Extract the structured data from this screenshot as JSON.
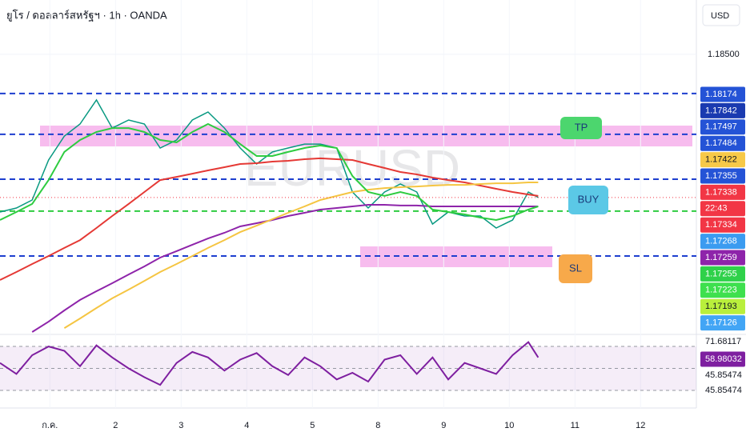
{
  "chart_data": {
    "type": "line",
    "title": "ยูโร / ดอลลาร์สหรัฐฯ · 1h · OANDA",
    "watermark": "EURUSD",
    "currency": "USD",
    "x": [
      0.24,
      0.49,
      0.73,
      0.98,
      1.22,
      1.46,
      1.71,
      1.95,
      2.2,
      2.44,
      2.68,
      2.93,
      3.17,
      3.41,
      3.66,
      3.9,
      4.15,
      4.39,
      4.63,
      4.88,
      5.12,
      5.37,
      5.61,
      5.85,
      6.1,
      6.34,
      6.59,
      6.83,
      7.07,
      7.32,
      7.56,
      7.8,
      8.05,
      8.29,
      8.44
    ],
    "xlim": [
      0.24,
      10.85
    ],
    "xticks": [
      {
        "value": 1,
        "label": "ก.ค."
      },
      2,
      3,
      4,
      5,
      {
        "value": 6,
        "label": "8"
      },
      {
        "value": 7,
        "label": "9"
      },
      {
        "value": 8,
        "label": "10"
      },
      {
        "value": 9,
        "label": "11"
      },
      {
        "value": 10,
        "label": "12"
      }
    ],
    "ylim": [
      1.16247,
      1.18941
    ],
    "yticks": [
      {
        "value": 1.185,
        "label": "1.18500"
      }
    ],
    "series": [
      {
        "color": "#089981",
        "values": [
          1.17221,
          1.17253,
          1.17318,
          1.17643,
          1.17837,
          1.17935,
          1.1813,
          1.17902,
          1.17967,
          1.17935,
          1.1774,
          1.17805,
          1.17967,
          1.18032,
          1.17902,
          1.1774,
          1.1761,
          1.17708,
          1.1774,
          1.17772,
          1.17772,
          1.1774,
          1.17383,
          1.17253,
          1.17383,
          1.17448,
          1.17383,
          1.17123,
          1.17221,
          1.17188,
          1.17188,
          1.17091,
          1.17156,
          1.17383,
          1.17338
        ]
      },
      {
        "color": "#e53935",
        "values": [
          1.16669,
          1.16734,
          1.16799,
          1.16864,
          1.16929,
          1.16993,
          1.17091,
          1.17188,
          1.17286,
          1.17383,
          1.1748,
          1.17506,
          1.17532,
          1.17558,
          1.17584,
          1.1761,
          1.17617,
          1.1763,
          1.17636,
          1.17649,
          1.17656,
          1.17649,
          1.17643,
          1.1761,
          1.17578,
          1.17545,
          1.17526,
          1.175,
          1.1748,
          1.17461,
          1.17435,
          1.17409,
          1.17383,
          1.17363,
          1.17351
        ]
      },
      {
        "color": "#8e24aa",
        "values": [
          null,
          null,
          1.16247,
          1.16331,
          1.16422,
          1.16507,
          1.16578,
          1.16643,
          1.16714,
          1.16779,
          1.16851,
          1.16903,
          1.16955,
          1.17006,
          1.17052,
          1.17104,
          1.1713,
          1.17156,
          1.17188,
          1.17214,
          1.1724,
          1.17253,
          1.17266,
          1.17279,
          1.17279,
          1.17273,
          1.17273,
          1.17266,
          1.17266,
          1.17266,
          1.17266,
          1.17266,
          1.17266,
          1.17266,
          1.17266
        ]
      },
      {
        "color": "#f5c542",
        "values": [
          null,
          null,
          null,
          null,
          1.16279,
          1.16357,
          1.16442,
          1.1652,
          1.16591,
          1.16662,
          1.16734,
          1.16799,
          1.16864,
          1.16929,
          1.16993,
          1.17058,
          1.1711,
          1.17162,
          1.17214,
          1.17266,
          1.17318,
          1.17351,
          1.17383,
          1.17402,
          1.17415,
          1.17422,
          1.17428,
          1.17435,
          1.17441,
          1.17441,
          1.17448,
          1.17454,
          1.17454,
          1.17461,
          1.17461
        ]
      },
      {
        "color": "#2ecc40",
        "values": [
          1.17156,
          1.17221,
          1.17286,
          1.1748,
          1.17708,
          1.17805,
          1.1787,
          1.17902,
          1.17902,
          1.1787,
          1.17805,
          1.17786,
          1.1787,
          1.17935,
          1.1787,
          1.17772,
          1.17675,
          1.17675,
          1.17708,
          1.1774,
          1.1776,
          1.1774,
          1.17513,
          1.17383,
          1.17351,
          1.17383,
          1.17351,
          1.1724,
          1.17221,
          1.17201,
          1.17175,
          1.17156,
          1.17188,
          1.1724,
          1.17266
        ]
      }
    ],
    "levels": [
      {
        "value": 1.18182,
        "color": "#1e3fcf"
      },
      {
        "value": 1.17851,
        "color": "#1e3fcf"
      },
      {
        "value": 1.17487,
        "color": "#1e3fcf"
      },
      {
        "value": 1.17228,
        "color": "#2ecc40"
      },
      {
        "value": 1.16864,
        "color": "#1e3fcf"
      }
    ],
    "price_tags": [
      {
        "value": 1.18174,
        "color": "#2453d6"
      },
      {
        "value": 1.17842,
        "color": "#1a3ab0"
      },
      {
        "value": 1.17497,
        "color": "#2453d6"
      },
      {
        "value": 1.17484,
        "color": "#2453d6"
      },
      {
        "value": 1.17422,
        "color": "#f7c948"
      },
      {
        "value": 1.17355,
        "color": "#2453d6"
      },
      {
        "value": 1.17338,
        "color": "#f23645"
      },
      {
        "text": "22:43",
        "color": "#f23645"
      },
      {
        "value": 1.17334,
        "color": "#f23645"
      },
      {
        "value": 1.17268,
        "color": "#3b9bf0"
      },
      {
        "value": 1.17259,
        "color": "#8e24aa"
      },
      {
        "value": 1.17255,
        "color": "#2fd14a"
      },
      {
        "value": 1.17223,
        "color": "#3ee04e"
      },
      {
        "value": 1.17193,
        "color": "#b9ef3c"
      },
      {
        "value": 1.17126,
        "color": "#42a5f5"
      }
    ],
    "annotations": [
      {
        "text": "TP",
        "color": "#4cd66e"
      },
      {
        "text": "BUY",
        "color": "#5bc8e6"
      },
      {
        "text": "SL",
        "color": "#f7a94a"
      }
    ],
    "rsi": {
      "color": "#7e1fa0",
      "ylim": [
        14,
        79.5
      ],
      "bands": [
        70,
        50,
        30
      ],
      "values": [
        55,
        45,
        62,
        70,
        66,
        52,
        71,
        60,
        50,
        42,
        35,
        55,
        65,
        60,
        48,
        58,
        64,
        52,
        44,
        60,
        52,
        40,
        46,
        38,
        58,
        62,
        45,
        60,
        40,
        55,
        50,
        45,
        62,
        74,
        60
      ],
      "tags": [
        {
          "value": 71.68117
        },
        {
          "value": 58.98032,
          "color": "#7e1fa0"
        },
        {
          "value": 45.85474
        },
        {
          "value": 45.85474
        }
      ]
    }
  }
}
